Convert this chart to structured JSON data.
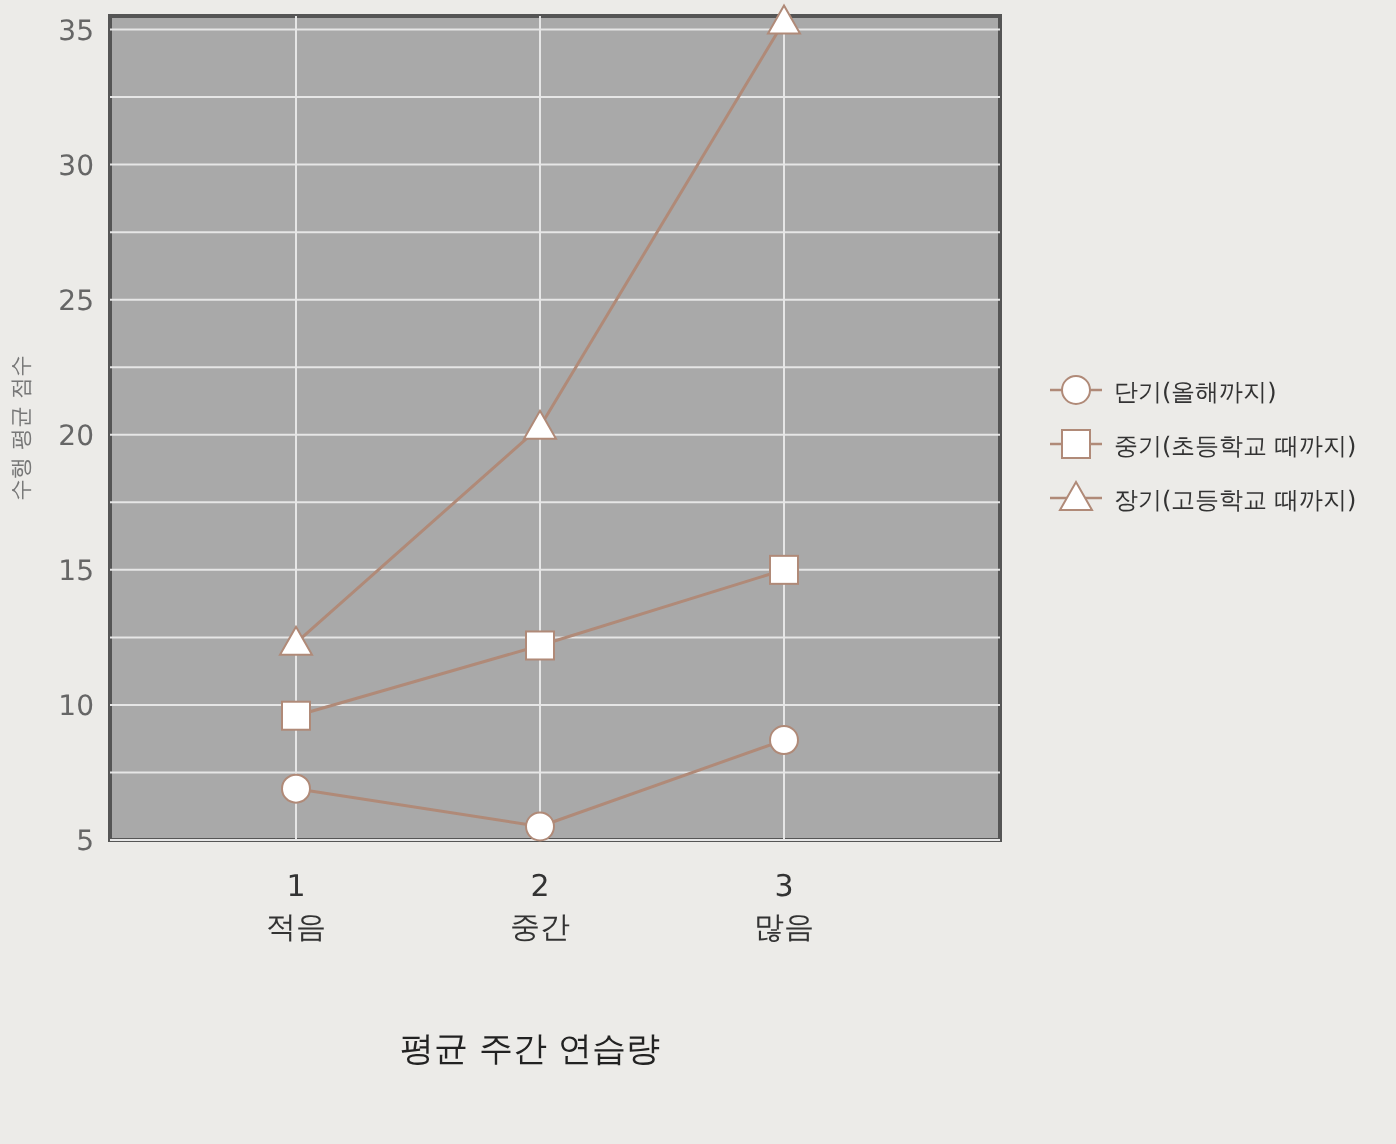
{
  "chart_data": {
    "type": "line",
    "xlabel": "평균 주간 연습량",
    "ylabel": "수행 평균 점수",
    "categories": [
      "1\n적음",
      "2\n중간",
      "3\n많음"
    ],
    "series": [
      {
        "name": "단기(올해까지)",
        "color": "#b08a78",
        "marker": "circle",
        "values": [
          6.9,
          5.5,
          8.7
        ]
      },
      {
        "name": "중기(초등학교 때까지)",
        "color": "#b08a78",
        "marker": "square",
        "values": [
          9.6,
          12.2,
          15.0
        ]
      },
      {
        "name": "장기(고등학교 때까지)",
        "color": "#b08a78",
        "marker": "triangle",
        "values": [
          12.3,
          20.3,
          35.3
        ]
      }
    ],
    "ylim": [
      5,
      35.5
    ],
    "yticks": [
      5,
      {
        "value": 7.5,
        "label": null
      },
      10,
      {
        "value": 12.5,
        "label": null
      },
      15,
      {
        "value": 17.5,
        "label": null
      },
      20,
      {
        "value": 22.5,
        "label": null
      },
      25,
      {
        "value": 27.5,
        "label": null
      },
      30,
      {
        "value": 32.5,
        "label": null
      },
      35
    ],
    "grid": true,
    "legend": "right",
    "line_style": "solid"
  }
}
